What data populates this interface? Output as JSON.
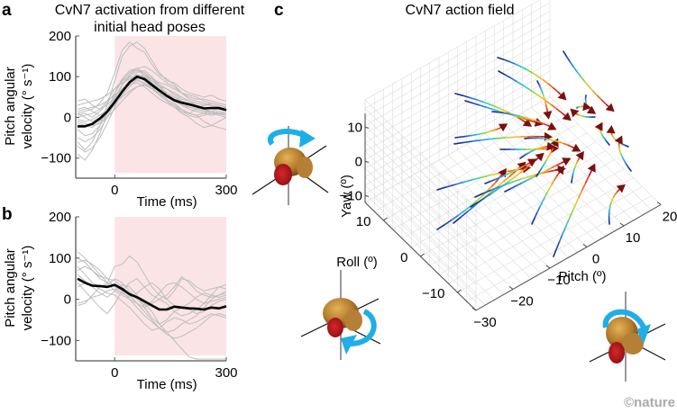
{
  "figure": {
    "panel_labels": [
      "a",
      "b",
      "c"
    ],
    "credit": "©nature",
    "colors": {
      "shade": "#fbe4e6",
      "trial_line": "#bdbdbd",
      "mean_line": "#000000",
      "axis": "#555555",
      "arrow": "#7a0f0f",
      "rotation_arrow": "#1eaee8",
      "grid": "#dcdcdc"
    }
  },
  "chart_data": [
    {
      "id": "a",
      "type": "line",
      "title": "CvN7 activation from different initial head poses",
      "title_lines": [
        "CvN7 activation from different",
        "initial head poses"
      ],
      "xlabel": "Time (ms)",
      "ylabel_lines": [
        "Pitch angular",
        "velocity (° s⁻¹)"
      ],
      "xlim": [
        -100,
        300
      ],
      "ylim": [
        -145,
        200
      ],
      "xticks": [
        0,
        300
      ],
      "xtick_labels": [
        "0",
        "300"
      ],
      "yticks": [
        -100,
        0,
        100,
        200
      ],
      "ytick_labels": [
        "−100",
        "0",
        "100",
        "200"
      ],
      "shaded_region": [
        0,
        300
      ],
      "mean": {
        "name": "mean",
        "x": [
          -100,
          -80,
          -60,
          -40,
          -20,
          0,
          20,
          40,
          60,
          80,
          100,
          120,
          140,
          160,
          180,
          200,
          220,
          240,
          260,
          280,
          300
        ],
        "y": [
          -22,
          -22,
          -16,
          -3,
          14,
          38,
          63,
          86,
          100,
          94,
          80,
          66,
          53,
          42,
          36,
          32,
          27,
          22,
          23,
          23,
          18
        ]
      },
      "trials": [
        {
          "name": "trial-1",
          "y": [
            10,
            15,
            20,
            35,
            60,
            110,
            165,
            185,
            170,
            160,
            130,
            105,
            95,
            80,
            60,
            45,
            40,
            35,
            30,
            25,
            20
          ]
        },
        {
          "name": "trial-2",
          "y": [
            -60,
            -80,
            -60,
            -20,
            30,
            90,
            150,
            175,
            185,
            170,
            140,
            110,
            90,
            85,
            70,
            60,
            55,
            50,
            55,
            45,
            40
          ]
        },
        {
          "name": "trial-3",
          "y": [
            5,
            10,
            0,
            15,
            35,
            60,
            90,
            110,
            120,
            110,
            95,
            80,
            70,
            55,
            40,
            25,
            20,
            15,
            10,
            8,
            5
          ]
        },
        {
          "name": "trial-4",
          "y": [
            -30,
            -45,
            -40,
            -20,
            10,
            45,
            80,
            100,
            115,
            105,
            90,
            75,
            60,
            45,
            30,
            20,
            15,
            10,
            5,
            10,
            10
          ]
        },
        {
          "name": "trial-5",
          "y": [
            40,
            45,
            30,
            20,
            30,
            50,
            70,
            90,
            105,
            100,
            85,
            70,
            60,
            50,
            40,
            35,
            30,
            25,
            20,
            20,
            15
          ]
        },
        {
          "name": "trial-6",
          "y": [
            -90,
            -105,
            -80,
            -40,
            10,
            60,
            95,
            115,
            120,
            105,
            85,
            60,
            45,
            30,
            15,
            5,
            0,
            5,
            10,
            15,
            10
          ]
        },
        {
          "name": "trial-7",
          "y": [
            20,
            25,
            15,
            5,
            15,
            40,
            65,
            80,
            90,
            85,
            70,
            55,
            50,
            40,
            30,
            25,
            20,
            15,
            15,
            10,
            5
          ]
        },
        {
          "name": "trial-8",
          "y": [
            -15,
            -20,
            -25,
            -10,
            10,
            30,
            55,
            75,
            95,
            100,
            90,
            80,
            70,
            60,
            45,
            40,
            35,
            30,
            30,
            25,
            20
          ]
        },
        {
          "name": "trial-9",
          "y": [
            0,
            5,
            10,
            20,
            40,
            70,
            90,
            100,
            95,
            80,
            70,
            60,
            45,
            30,
            20,
            10,
            5,
            -10,
            -20,
            -25,
            -30
          ]
        },
        {
          "name": "trial-10",
          "y": [
            -50,
            -60,
            -50,
            -30,
            0,
            35,
            65,
            90,
            110,
            115,
            100,
            80,
            55,
            35,
            20,
            10,
            5,
            10,
            15,
            20,
            25
          ]
        },
        {
          "name": "trial-11",
          "y": [
            10,
            0,
            -10,
            0,
            20,
            50,
            80,
            105,
            120,
            125,
            115,
            100,
            85,
            75,
            60,
            50,
            45,
            45,
            40,
            35,
            30
          ]
        },
        {
          "name": "trial-12",
          "y": [
            -10,
            -15,
            -20,
            -15,
            0,
            20,
            40,
            60,
            75,
            80,
            75,
            65,
            55,
            45,
            40,
            35,
            30,
            20,
            15,
            10,
            5
          ]
        },
        {
          "name": "trial-13",
          "y": [
            30,
            35,
            40,
            45,
            55,
            70,
            85,
            95,
            100,
            90,
            75,
            55,
            40,
            25,
            10,
            0,
            -15,
            -25,
            -20,
            -10,
            0
          ]
        },
        {
          "name": "trial-14",
          "y": [
            -70,
            -85,
            -75,
            -50,
            -15,
            25,
            60,
            85,
            100,
            105,
            95,
            85,
            80,
            70,
            60,
            55,
            50,
            40,
            35,
            30,
            25
          ]
        },
        {
          "name": "trial-15",
          "y": [
            15,
            20,
            25,
            30,
            40,
            55,
            70,
            80,
            85,
            75,
            60,
            45,
            35,
            25,
            15,
            10,
            20,
            30,
            35,
            30,
            25
          ]
        },
        {
          "name": "trial-16",
          "y": [
            -5,
            -10,
            -5,
            5,
            20,
            35,
            50,
            65,
            75,
            80,
            80,
            75,
            70,
            60,
            50,
            40,
            30,
            20,
            10,
            5,
            0
          ]
        }
      ]
    },
    {
      "id": "b",
      "type": "line",
      "title": "",
      "xlabel": "Time (ms)",
      "ylabel_lines": [
        "Pitch angular",
        "velocity (° s⁻¹)"
      ],
      "xlim": [
        -100,
        300
      ],
      "ylim": [
        -145,
        200
      ],
      "xticks": [
        0,
        300
      ],
      "xtick_labels": [
        "0",
        "300"
      ],
      "yticks": [
        -100,
        0,
        100,
        200
      ],
      "ytick_labels": [
        "−100",
        "0",
        "100",
        "200"
      ],
      "shaded_region": [
        0,
        300
      ],
      "mean": {
        "name": "mean",
        "x": [
          -100,
          -80,
          -60,
          -40,
          -20,
          0,
          20,
          40,
          60,
          80,
          100,
          120,
          140,
          160,
          180,
          200,
          220,
          240,
          260,
          280,
          300
        ],
        "y": [
          50,
          40,
          33,
          32,
          30,
          35,
          25,
          12,
          5,
          -5,
          -15,
          -25,
          -25,
          -18,
          -20,
          -22,
          -23,
          -25,
          -20,
          -22,
          -17
        ]
      },
      "trials": [
        {
          "name": "trial-1",
          "y": [
            115,
            100,
            80,
            60,
            40,
            20,
            10,
            0,
            -10,
            -30,
            -50,
            -70,
            -80,
            -75,
            -60,
            -50,
            -40,
            -20,
            0,
            10,
            15
          ]
        },
        {
          "name": "trial-2",
          "y": [
            90,
            95,
            85,
            70,
            50,
            30,
            20,
            15,
            5,
            -10,
            -30,
            -60,
            -80,
            -100,
            -120,
            -140,
            -150,
            -150,
            -150,
            -150,
            -150
          ]
        },
        {
          "name": "trial-3",
          "y": [
            70,
            80,
            70,
            50,
            40,
            80,
            85,
            105,
            90,
            60,
            30,
            10,
            0,
            20,
            50,
            45,
            30,
            20,
            25,
            30,
            25
          ]
        },
        {
          "name": "trial-4",
          "y": [
            -15,
            -10,
            10,
            30,
            40,
            35,
            20,
            0,
            -20,
            -40,
            -55,
            -70,
            -85,
            -95,
            -90,
            -80,
            -70,
            -55,
            -40,
            -35,
            -40
          ]
        },
        {
          "name": "trial-5",
          "y": [
            40,
            20,
            0,
            -20,
            -35,
            -10,
            20,
            40,
            50,
            30,
            10,
            0,
            10,
            30,
            55,
            40,
            20,
            10,
            5,
            10,
            20
          ]
        },
        {
          "name": "trial-6",
          "y": [
            100,
            90,
            70,
            55,
            50,
            45,
            30,
            10,
            -10,
            -20,
            -10,
            0,
            -10,
            -30,
            -40,
            -35,
            -25,
            -10,
            10,
            30,
            35
          ]
        },
        {
          "name": "trial-7",
          "y": [
            60,
            45,
            30,
            15,
            5,
            20,
            35,
            30,
            10,
            -20,
            -45,
            -60,
            -50,
            -30,
            -20,
            -25,
            -35,
            -30,
            -15,
            -5,
            0
          ]
        },
        {
          "name": "trial-8",
          "y": [
            -10,
            -5,
            5,
            10,
            20,
            25,
            15,
            5,
            15,
            30,
            40,
            25,
            0,
            -15,
            -20,
            -10,
            5,
            15,
            10,
            5,
            10
          ]
        },
        {
          "name": "trial-9",
          "y": [
            30,
            40,
            35,
            25,
            15,
            10,
            -5,
            -20,
            -40,
            -60,
            -75,
            -70,
            -55,
            -45,
            -50,
            -60,
            -55,
            -45,
            -35,
            -40,
            -45
          ]
        },
        {
          "name": "trial-10",
          "y": [
            80,
            60,
            40,
            30,
            35,
            50,
            40,
            20,
            0,
            -15,
            -5,
            15,
            35,
            40,
            30,
            15,
            0,
            -10,
            -5,
            0,
            5
          ]
        }
      ]
    },
    {
      "id": "c",
      "type": "scatter",
      "subtype": "3d-vector-field",
      "title": "CvN7 action field",
      "axes": {
        "pitch": {
          "label": "Pitch (º)",
          "ticks": [
            -30,
            -20,
            -10,
            0,
            10,
            20
          ]
        },
        "roll": {
          "label": "Roll (º)",
          "ticks": [
            -10,
            0,
            10
          ]
        },
        "yaw": {
          "label": "Yaw (º)",
          "ticks": [
            -10,
            0,
            10
          ]
        }
      },
      "grid": true,
      "colormap": "jet (blue = trajectory start, red = end, arrow at endpoint)",
      "trajectories_count": 30,
      "illustrations": [
        {
          "name": "yaw-rotation",
          "axis": "yaw"
        },
        {
          "name": "roll-rotation",
          "axis": "roll"
        },
        {
          "name": "pitch-rotation",
          "axis": "pitch"
        }
      ]
    }
  ]
}
